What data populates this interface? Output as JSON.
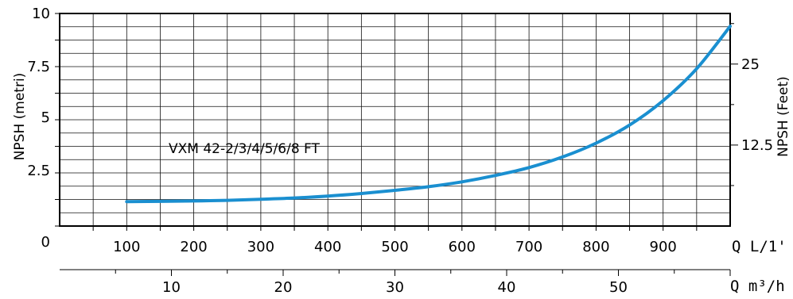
{
  "chart_data": {
    "type": "line",
    "ylabel_left": "NPSH (metri)",
    "ylabel_right": "NPSH (Feet)",
    "xlabel_lmin": "Q L/1'",
    "xlabel_m3h": "Q m³/h",
    "x_range_lmin": [
      0,
      1000
    ],
    "y_range_m": [
      0,
      10
    ],
    "x_ticks_lmin": [
      100,
      200,
      300,
      400,
      500,
      600,
      700,
      800,
      900
    ],
    "x_ticks_m3h": [
      10,
      20,
      30,
      40,
      50
    ],
    "y_ticks_left": [
      "10",
      "7.5",
      "5",
      "2.5",
      "0"
    ],
    "y_ticks_right": [
      "25",
      "12.5"
    ],
    "grid": true,
    "line_color": "#1a8fd0",
    "series": [
      {
        "name": "VXM 42-2/3/4/5/6/8 FT",
        "x": [
          100,
          150,
          200,
          250,
          300,
          350,
          400,
          450,
          500,
          550,
          600,
          650,
          700,
          750,
          800,
          850,
          900,
          950,
          1000
        ],
        "y": [
          1.15,
          1.16,
          1.18,
          1.21,
          1.26,
          1.32,
          1.41,
          1.53,
          1.68,
          1.85,
          2.08,
          2.38,
          2.75,
          3.25,
          3.9,
          4.75,
          5.9,
          7.4,
          9.4
        ]
      }
    ]
  }
}
